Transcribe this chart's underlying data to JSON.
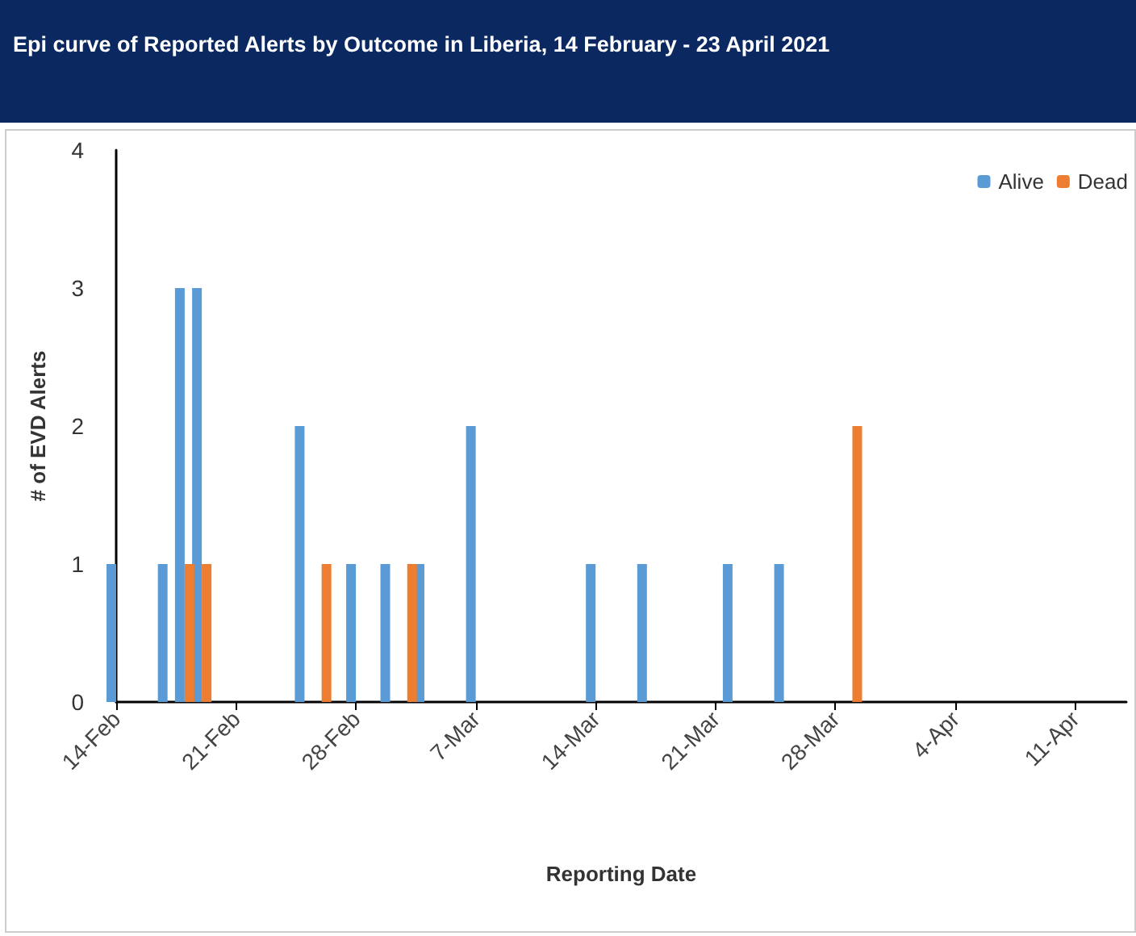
{
  "chart_data": {
    "type": "bar",
    "title": "Epi curve of Reported Alerts by Outcome in Liberia, 14 February - 23 April 2021",
    "xlabel": "Reporting Date",
    "ylabel": "# of EVD Alerts",
    "series": [
      {
        "name": "Alive",
        "color": "#5b9bd5",
        "x": [
          "2021-02-14",
          "2021-02-17",
          "2021-02-18",
          "2021-02-19",
          "2021-02-25",
          "2021-02-28",
          "2021-03-02",
          "2021-03-04",
          "2021-03-07",
          "2021-03-14",
          "2021-03-17",
          "2021-03-22",
          "2021-03-25"
        ],
        "values": [
          1,
          1,
          3,
          3,
          2,
          1,
          1,
          1,
          2,
          1,
          1,
          1,
          1
        ]
      },
      {
        "name": "Dead",
        "color": "#ed7d31",
        "x": [
          "2021-02-18",
          "2021-02-19",
          "2021-02-26",
          "2021-03-03",
          "2021-03-29"
        ],
        "values": [
          1,
          1,
          1,
          1,
          2
        ]
      }
    ],
    "xlim": [
      "2021-02-14",
      "2021-04-14"
    ],
    "xticks": [
      {
        "value": "2021-02-14",
        "label": "14-Feb"
      },
      {
        "value": "2021-02-21",
        "label": "21-Feb"
      },
      {
        "value": "2021-02-28",
        "label": "28-Feb"
      },
      {
        "value": "2021-03-07",
        "label": "7-Mar"
      },
      {
        "value": "2021-03-14",
        "label": "14-Mar"
      },
      {
        "value": "2021-03-21",
        "label": "21-Mar"
      },
      {
        "value": "2021-03-28",
        "label": "28-Mar"
      },
      {
        "value": "2021-04-04",
        "label": "4-Apr"
      },
      {
        "value": "2021-04-11",
        "label": "11-Apr"
      }
    ],
    "ylim": [
      0,
      4
    ],
    "yticks": [
      0,
      1,
      2,
      3,
      4
    ],
    "grid": false,
    "legend": "top right"
  }
}
